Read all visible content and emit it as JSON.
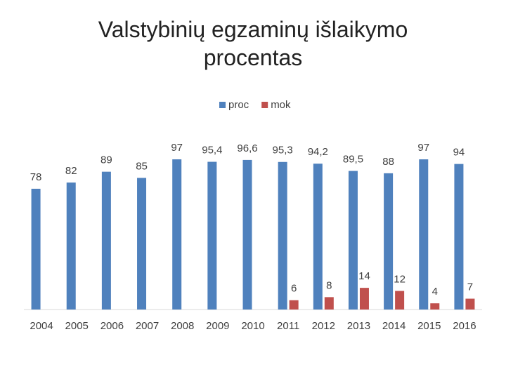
{
  "chart_data": {
    "type": "bar",
    "title": "Valstybinių egzaminų išlaikymo procentas",
    "categories": [
      "2004",
      "2005",
      "2006",
      "2007",
      "2008",
      "2009",
      "2010",
      "2011",
      "2012",
      "2013",
      "2014",
      "2015",
      "2016"
    ],
    "series": [
      {
        "name": "proc",
        "color": "#4f81bd",
        "values": [
          78,
          82,
          89,
          85,
          97,
          95.4,
          96.6,
          95.3,
          94.2,
          89.5,
          88,
          97,
          94
        ],
        "value_labels": [
          "78",
          "82",
          "89",
          "85",
          "97",
          "95,4",
          "96,6",
          "95,3",
          "94,2",
          "89,5",
          "88",
          "97",
          "94"
        ]
      },
      {
        "name": "mok",
        "color": "#c0504d",
        "values": [
          null,
          null,
          null,
          null,
          null,
          null,
          null,
          6,
          8,
          14,
          12,
          4,
          7
        ]
      }
    ],
    "ylim": [
      0,
      100
    ],
    "legend": "top"
  }
}
